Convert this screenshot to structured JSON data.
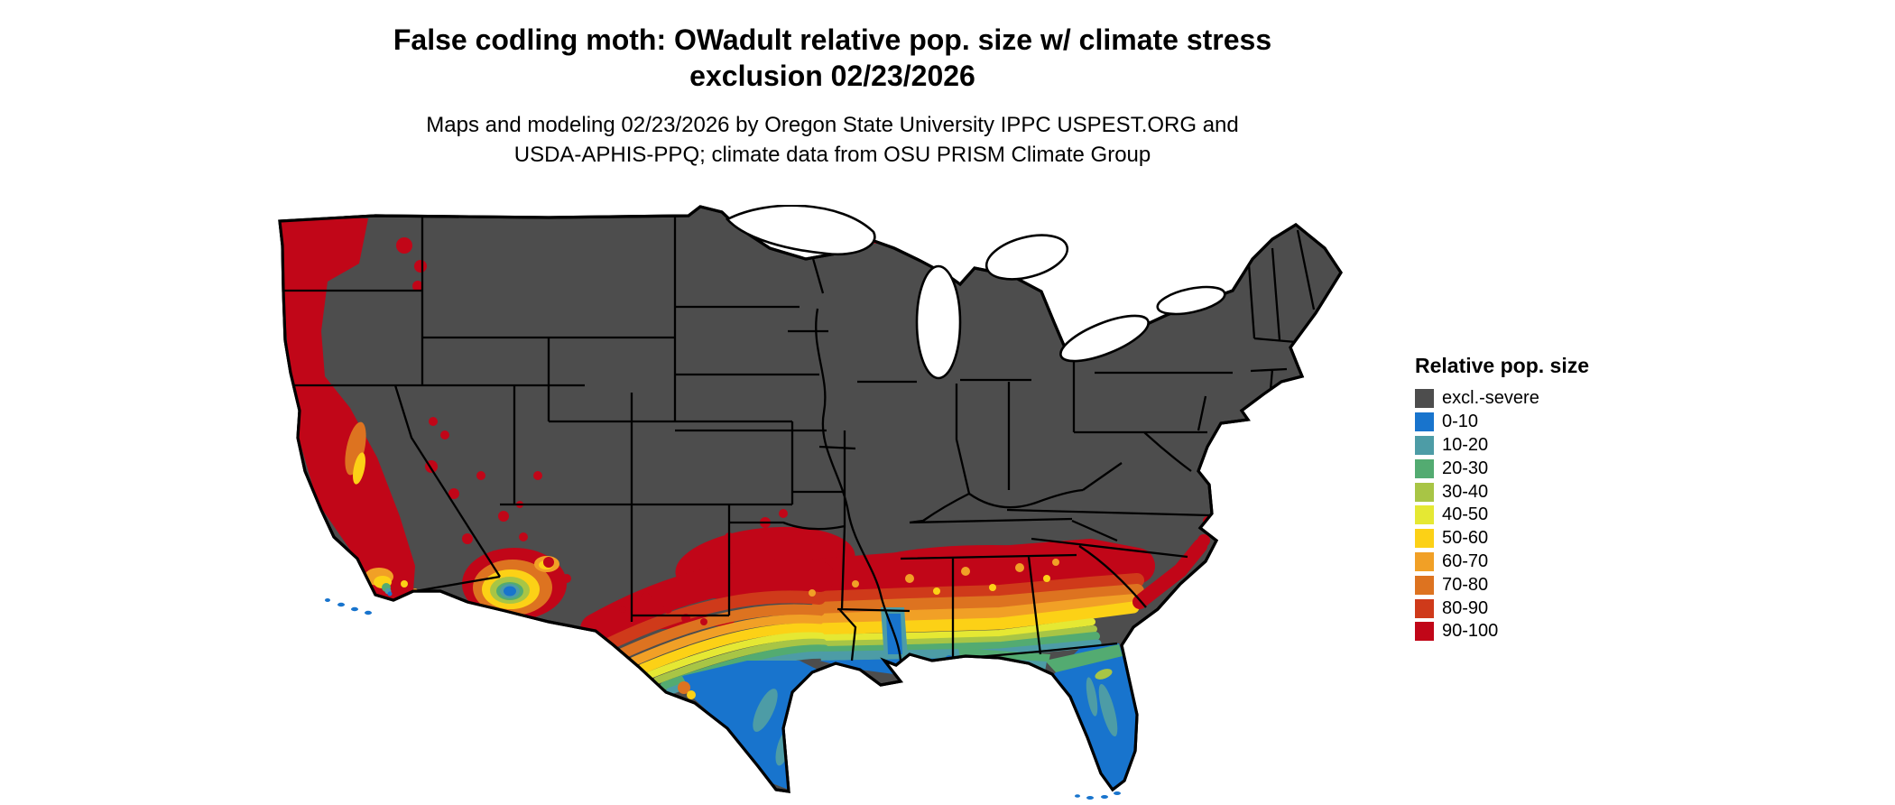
{
  "title": {
    "line1": "False codling moth: OWadult relative pop. size w/ climate stress",
    "line2": "exclusion 02/23/2026"
  },
  "subtitle": {
    "line1": "Maps and modeling 02/23/2026 by Oregon State University IPPC USPEST.ORG and",
    "line2": "USDA-APHIS-PPQ; climate data from OSU PRISM Climate Group"
  },
  "legend": {
    "title": "Relative pop. size",
    "items": [
      {
        "key": "excl",
        "label": "excl.-severe",
        "color": "#4d4d4d"
      },
      {
        "key": "b0",
        "label": "0-10",
        "color": "#1874cd"
      },
      {
        "key": "b10",
        "label": "10-20",
        "color": "#4d9ca6"
      },
      {
        "key": "b20",
        "label": "20-30",
        "color": "#53ab71"
      },
      {
        "key": "b30",
        "label": "30-40",
        "color": "#a8c545"
      },
      {
        "key": "b40",
        "label": "40-50",
        "color": "#e5e833"
      },
      {
        "key": "b50",
        "label": "50-60",
        "color": "#fcd116"
      },
      {
        "key": "b60",
        "label": "60-70",
        "color": "#f1a026"
      },
      {
        "key": "b70",
        "label": "70-80",
        "color": "#dd7320"
      },
      {
        "key": "b80",
        "label": "80-90",
        "color": "#cf3a1a"
      },
      {
        "key": "b90",
        "label": "90-100",
        "color": "#c10618"
      }
    ]
  },
  "map": {
    "region": "Continental United States",
    "land_excluded_color": "#4d4d4d",
    "outline_color": "#000000",
    "water_color": "#ffffff",
    "high_population_areas": "Pacific coast (WA, OR, CA), southern interior West, central Texas, Gulf south, Southeast band, coastal Carolinas",
    "low_population_areas": "south Texas tip, coastal Louisiana, Florida peninsula, lower Colorado River valley"
  }
}
